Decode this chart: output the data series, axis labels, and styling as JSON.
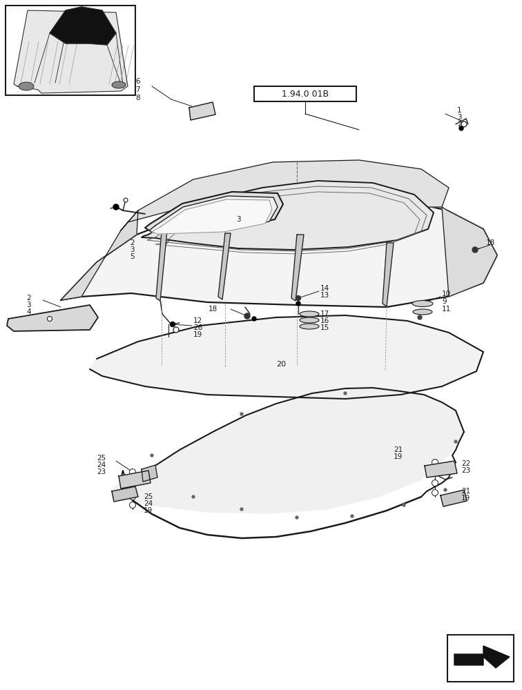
{
  "bg_color": "#ffffff",
  "line_color": "#1a1a1a",
  "ref_box_label": "1.94.0 01B",
  "fig_width": 7.56,
  "fig_height": 10.0,
  "dpi": 100
}
